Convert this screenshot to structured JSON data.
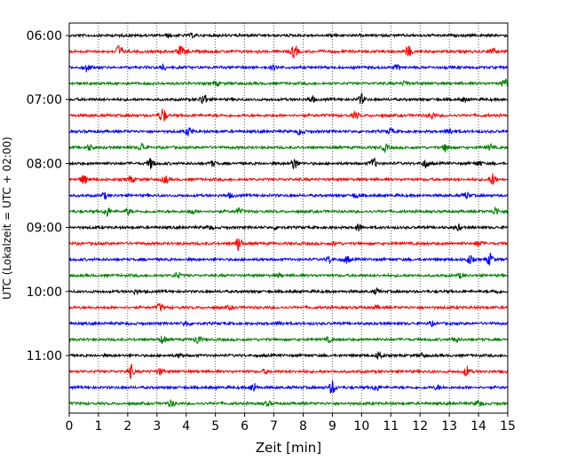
{
  "chart_data": {
    "type": "line",
    "title": "",
    "xlabel": "Zeit  [min]",
    "ylabel": "UTC (Lokalzeit = UTC + 02:00)",
    "xlim": [
      0,
      15
    ],
    "x_ticks": [
      0,
      1,
      2,
      3,
      4,
      5,
      6,
      7,
      8,
      9,
      10,
      11,
      12,
      13,
      14,
      15
    ],
    "x_tick_labels": [
      "0",
      "1",
      "2",
      "3",
      "4",
      "5",
      "6",
      "7",
      "8",
      "9",
      "10",
      "11",
      "12",
      "13",
      "14",
      "15"
    ],
    "y_tick_labels": [
      "06:00",
      "07:00",
      "08:00",
      "09:00",
      "10:00",
      "11:00"
    ],
    "y_tick_rows": [
      0,
      4,
      8,
      12,
      16,
      20
    ],
    "grid": "vertical dotted lines at each minute",
    "trace_colors": [
      "#000000",
      "#ff0000",
      "#0000ff",
      "#008000"
    ],
    "trace_minutes": 15,
    "traces": [
      {
        "start": "06:00",
        "color": "#000000",
        "events": [
          [
            3.4,
            0.5
          ],
          [
            4.2,
            0.5
          ],
          [
            9.0,
            0.3
          ]
        ]
      },
      {
        "start": "06:15",
        "color": "#ff0000",
        "events": [
          [
            1.7,
            2.2
          ],
          [
            3.8,
            1.6
          ],
          [
            7.7,
            2.2
          ],
          [
            11.6,
            1.8
          ],
          [
            4.0,
            0.5
          ],
          [
            14.5,
            0.9
          ]
        ]
      },
      {
        "start": "06:30",
        "color": "#0000ff",
        "events": [
          [
            0.6,
            1.4
          ],
          [
            3.2,
            1.0
          ],
          [
            7.0,
            0.6
          ],
          [
            11.2,
            0.8
          ]
        ]
      },
      {
        "start": "06:45",
        "color": "#008000",
        "events": [
          [
            5.0,
            0.7
          ],
          [
            11.5,
            0.7
          ],
          [
            14.9,
            1.5
          ]
        ]
      },
      {
        "start": "07:00",
        "color": "#000000",
        "events": [
          [
            4.6,
            2.0
          ],
          [
            8.3,
            1.1
          ],
          [
            10.0,
            1.6
          ],
          [
            13.5,
            0.6
          ]
        ]
      },
      {
        "start": "07:15",
        "color": "#ff0000",
        "events": [
          [
            3.2,
            2.6
          ],
          [
            9.8,
            1.1
          ],
          [
            12.4,
            1.1
          ]
        ]
      },
      {
        "start": "07:30",
        "color": "#0000ff",
        "events": [
          [
            4.1,
            1.4
          ],
          [
            7.9,
            1.1
          ],
          [
            11.0,
            1.0
          ],
          [
            13.0,
            1.3
          ]
        ]
      },
      {
        "start": "07:45",
        "color": "#008000",
        "events": [
          [
            0.7,
            0.9
          ],
          [
            2.5,
            1.4
          ],
          [
            10.8,
            1.1
          ],
          [
            12.9,
            1.5
          ],
          [
            14.4,
            0.9
          ]
        ]
      },
      {
        "start": "08:00",
        "color": "#000000",
        "events": [
          [
            2.8,
            1.8
          ],
          [
            4.9,
            0.9
          ],
          [
            7.7,
            2.0
          ],
          [
            10.4,
            1.6
          ],
          [
            12.2,
            1.3
          ],
          [
            14.0,
            0.8
          ]
        ]
      },
      {
        "start": "08:15",
        "color": "#ff0000",
        "events": [
          [
            0.5,
            1.6
          ],
          [
            2.1,
            1.1
          ],
          [
            3.3,
            1.2
          ],
          [
            14.5,
            2.0
          ]
        ]
      },
      {
        "start": "08:30",
        "color": "#0000ff",
        "events": [
          [
            1.2,
            1.0
          ],
          [
            5.5,
            0.7
          ],
          [
            9.8,
            0.8
          ],
          [
            13.6,
            1.0
          ]
        ]
      },
      {
        "start": "08:45",
        "color": "#008000",
        "events": [
          [
            1.3,
            1.6
          ],
          [
            2.0,
            1.0
          ],
          [
            4.2,
            0.8
          ],
          [
            5.8,
            0.9
          ],
          [
            14.6,
            1.2
          ]
        ]
      },
      {
        "start": "09:00",
        "color": "#000000",
        "events": [
          [
            4.8,
            0.6
          ],
          [
            7.1,
            0.6
          ],
          [
            9.9,
            1.2
          ],
          [
            13.3,
            0.8
          ]
        ]
      },
      {
        "start": "09:15",
        "color": "#ff0000",
        "events": [
          [
            5.8,
            2.4
          ],
          [
            9.1,
            0.6
          ],
          [
            14.0,
            1.0
          ]
        ]
      },
      {
        "start": "09:30",
        "color": "#0000ff",
        "events": [
          [
            8.9,
            1.1
          ],
          [
            9.5,
            1.2
          ],
          [
            13.7,
            1.4
          ],
          [
            14.4,
            2.0
          ]
        ]
      },
      {
        "start": "09:45",
        "color": "#008000",
        "events": [
          [
            3.7,
            1.0
          ],
          [
            7.2,
            0.5
          ],
          [
            13.4,
            0.7
          ]
        ]
      },
      {
        "start": "10:00",
        "color": "#000000",
        "events": [
          [
            2.3,
            0.7
          ],
          [
            10.5,
            0.7
          ],
          [
            14.6,
            0.6
          ]
        ]
      },
      {
        "start": "10:15",
        "color": "#ff0000",
        "events": [
          [
            3.1,
            1.2
          ],
          [
            5.5,
            0.5
          ],
          [
            10.5,
            0.5
          ]
        ]
      },
      {
        "start": "10:30",
        "color": "#0000ff",
        "events": [
          [
            4.0,
            0.8
          ],
          [
            7.2,
            0.6
          ],
          [
            12.4,
            0.6
          ]
        ]
      },
      {
        "start": "10:45",
        "color": "#008000",
        "events": [
          [
            3.2,
            1.4
          ],
          [
            4.4,
            1.5
          ],
          [
            8.9,
            0.8
          ],
          [
            13.2,
            1.1
          ]
        ]
      },
      {
        "start": "11:00",
        "color": "#000000",
        "events": [
          [
            3.8,
            0.7
          ],
          [
            10.6,
            1.3
          ],
          [
            12.1,
            0.7
          ]
        ]
      },
      {
        "start": "11:15",
        "color": "#ff0000",
        "events": [
          [
            2.1,
            2.2
          ],
          [
            3.1,
            1.0
          ],
          [
            6.7,
            0.6
          ],
          [
            13.6,
            1.7
          ]
        ]
      },
      {
        "start": "11:30",
        "color": "#0000ff",
        "events": [
          [
            6.3,
            1.6
          ],
          [
            9.0,
            2.2
          ],
          [
            10.5,
            1.1
          ],
          [
            12.6,
            0.7
          ]
        ]
      },
      {
        "start": "11:45",
        "color": "#008000",
        "events": [
          [
            3.5,
            1.1
          ],
          [
            6.8,
            0.7
          ],
          [
            14.0,
            1.1
          ]
        ]
      }
    ]
  }
}
